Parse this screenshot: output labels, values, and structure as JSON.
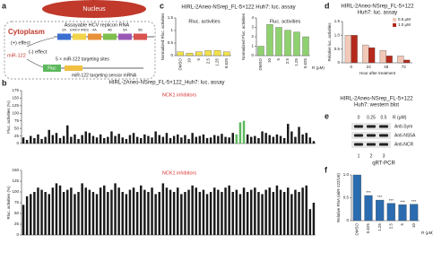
{
  "panel_labels": [
    "a",
    "b",
    "c",
    "d",
    "e",
    "f"
  ],
  "diagram": {
    "nucleus": "Nucleus",
    "cytoplasm": "Cytoplasm",
    "replicon": "Assayable HCV replicon RNA",
    "plus_effect": "(+) effect",
    "minus_effect": "(-) effect",
    "mirna": "miR-122",
    "sites": "5 × miR-122 targeting sites",
    "sensor": "miR-122 targeting sensor mRNA",
    "fluc": "Fluc",
    "segments": [
      "2A",
      "EMCV IRES",
      "4A",
      "4B",
      "5A",
      "5B"
    ]
  },
  "blot": {
    "title": [
      "HIRL-2Aneo-NSrep_FL-5×122",
      "Huh7: western blot"
    ],
    "lanes": [
      "0",
      "0.25",
      "0.5"
    ],
    "unit": "R (μM)",
    "rows": [
      "Anti-Sym",
      "Anti-NS5A",
      "Anti-NCR"
    ],
    "lane_numbers": [
      "1",
      "2",
      "3"
    ]
  },
  "chart_data": [
    {
      "type": "bar",
      "title": "HIRL-2Aneo-NSrep_FL-5×122_Huh7: luc. assay",
      "ylabel": "Fluc. activities (%)",
      "ylim": [
        0,
        175
      ],
      "yticks": [
        0,
        25,
        50,
        75,
        100,
        125,
        150,
        175
      ],
      "annotation": "NCK1 inhibitors",
      "series": [
        {
          "color": "#1a1a1a",
          "values": [
            20,
            12,
            25,
            18,
            30,
            15,
            22,
            45,
            28,
            35,
            18,
            25,
            60,
            22,
            30,
            15,
            28,
            40,
            35,
            25,
            20,
            30,
            18,
            22,
            40,
            25,
            32,
            20,
            15,
            28,
            35,
            22,
            18,
            30,
            25,
            20,
            40,
            28,
            22,
            35,
            18,
            25,
            30,
            20,
            28,
            15,
            35,
            22,
            25,
            30,
            18,
            20,
            28,
            25,
            32,
            22,
            20,
            35,
            null,
            null,
            null,
            30,
            22,
            25,
            18,
            40,
            35,
            28,
            22,
            30,
            25,
            18,
            65,
            40,
            22,
            55,
            30,
            35,
            20,
            8
          ]
        },
        {
          "color": "#5cb85c",
          "values": [
            null,
            null,
            null,
            null,
            null,
            null,
            null,
            null,
            null,
            null,
            null,
            null,
            null,
            null,
            null,
            null,
            null,
            null,
            null,
            null,
            null,
            null,
            null,
            null,
            null,
            null,
            null,
            null,
            null,
            null,
            null,
            null,
            null,
            null,
            null,
            null,
            null,
            null,
            null,
            null,
            null,
            null,
            null,
            null,
            null,
            null,
            null,
            null,
            null,
            null,
            null,
            null,
            null,
            null,
            null,
            null,
            null,
            null,
            30,
            70,
            75,
            null,
            null,
            null,
            null,
            null,
            null,
            null,
            null,
            null,
            null,
            null,
            null,
            null,
            null,
            null,
            null,
            null,
            null,
            null
          ]
        }
      ]
    },
    {
      "type": "bar",
      "ylabel": "Rluc. activities (%)",
      "ylim": [
        0,
        150
      ],
      "yticks": [
        0,
        25,
        50,
        75,
        100,
        125,
        150
      ],
      "annotation": "NCK1 inhibitors",
      "series": [
        {
          "color": "#1a1a1a",
          "values": [
            70,
            90,
            95,
            100,
            110,
            105,
            100,
            95,
            110,
            120,
            115,
            100,
            105,
            110,
            95,
            100,
            120,
            110,
            105,
            100,
            95,
            110,
            115,
            100,
            105,
            120,
            110,
            100,
            95,
            105,
            110,
            100,
            115,
            105,
            100,
            110,
            95,
            100,
            120,
            110,
            105,
            100,
            110,
            95,
            100,
            105,
            115,
            110,
            100,
            105,
            95,
            100,
            110,
            105,
            100,
            110,
            115,
            100,
            105,
            95,
            110,
            100,
            105,
            110,
            100,
            95,
            105,
            110,
            100,
            115,
            105,
            100,
            110,
            95,
            105,
            100,
            110,
            115,
            60,
            75
          ]
        }
      ]
    },
    {
      "type": "bar",
      "title": "HIRL-2Aneo-NSrep_FL-5×122 Huh7: luc. assay",
      "ylabel": "Normalized Rluc. activities",
      "annotation": "Rluc. activities",
      "ylim": [
        0,
        1.5
      ],
      "yticks": [
        0,
        0.5,
        1,
        1.5
      ],
      "categories": [
        "DMSO",
        "10",
        "5",
        "2.5",
        "1.25",
        "0.625"
      ],
      "series": [
        {
          "color": "#f2e14c",
          "values": [
            0.15,
            0.1,
            0.15,
            0.2,
            0.2,
            0.15
          ]
        }
      ]
    },
    {
      "type": "bar",
      "ylabel": "Normalized Fluc. activities",
      "annotation": "Fluc. activities",
      "xlabel": "R (μM)",
      "ylim": [
        0,
        4
      ],
      "yticks": [
        0,
        1,
        2,
        3,
        4
      ],
      "categories": [
        "DMSO",
        "10",
        "5",
        "2.5",
        "1.25",
        "0.625"
      ],
      "series": [
        {
          "color": "#8fd16f",
          "values": [
            1,
            3.3,
            3,
            2.7,
            2.5,
            2
          ]
        }
      ]
    },
    {
      "type": "bar",
      "title": [
        "HIRL-2Aneo-NSrep_FL-5×122",
        "Huh7: luc. assay"
      ],
      "ylabel": "Relative luc. activities",
      "xlabel": "Hour after treatment",
      "ylim": [
        0,
        1.5
      ],
      "yticks": [
        0,
        0.5,
        {
          "value": 1,
          "label": "1.0"
        },
        1.5
      ],
      "categories": [
        "0",
        "24",
        "48",
        "72"
      ],
      "legend": "upper right",
      "series": [
        {
          "name": "0.5 μM",
          "color": "#f2c9b8",
          "values": [
            1,
            0.65,
            0.45,
            0.25
          ]
        },
        {
          "name": "1.0 μM",
          "color": "#b52a1c",
          "values": [
            1,
            0.55,
            0.25,
            0.1
          ]
        }
      ]
    },
    {
      "type": "bar",
      "title": "qRT-PCR",
      "ylabel": "Relative RNA (miR-122/U6)",
      "xlabel": "R (μM)",
      "ylim": [
        0,
        1
      ],
      "yticks": [
        0,
        0.5,
        {
          "value": 1,
          "label": "1.0"
        }
      ],
      "categories": [
        "DMSO",
        "0.625",
        "1.25",
        "2.5",
        "5",
        "10"
      ],
      "series": [
        {
          "color": "#2b6cb0",
          "values": [
            1,
            0.55,
            0.45,
            0.38,
            0.35,
            0.36
          ],
          "significance": [
            null,
            "***",
            "***",
            "***",
            "***",
            "***"
          ]
        }
      ]
    }
  ]
}
